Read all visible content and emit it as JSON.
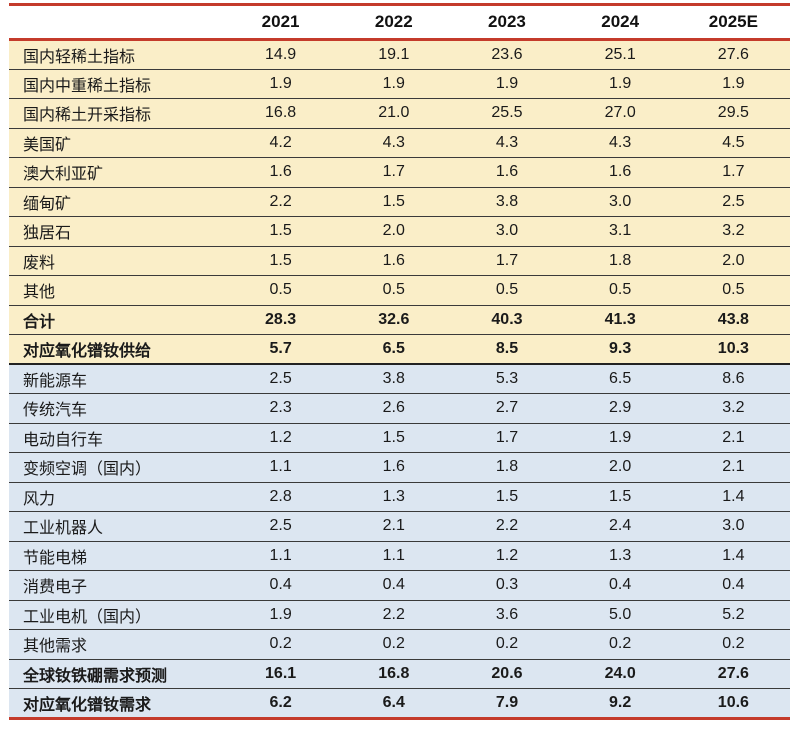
{
  "colors": {
    "supply_row_bg": "#FAEEC8",
    "demand_row_bg": "#DCE6F1",
    "accent_line": "#C43B2B",
    "separator_line": "#3A3A3A",
    "text": "#1A1A1A"
  },
  "table": {
    "empty_corner": "",
    "years": [
      "2021",
      "2022",
      "2023",
      "2024",
      "2025E"
    ],
    "rows": [
      {
        "label": "国内轻稀土指标",
        "values": [
          "14.9",
          "19.1",
          "23.6",
          "25.1",
          "27.6"
        ],
        "section": "supply",
        "bold": false
      },
      {
        "label": "国内中重稀土指标",
        "values": [
          "1.9",
          "1.9",
          "1.9",
          "1.9",
          "1.9"
        ],
        "section": "supply",
        "bold": false
      },
      {
        "label": "国内稀土开采指标",
        "values": [
          "16.8",
          "21.0",
          "25.5",
          "27.0",
          "29.5"
        ],
        "section": "supply",
        "bold": false
      },
      {
        "label": "美国矿",
        "values": [
          "4.2",
          "4.3",
          "4.3",
          "4.3",
          "4.5"
        ],
        "section": "supply",
        "bold": false
      },
      {
        "label": "澳大利亚矿",
        "values": [
          "1.6",
          "1.7",
          "1.6",
          "1.6",
          "1.7"
        ],
        "section": "supply",
        "bold": false
      },
      {
        "label": "缅甸矿",
        "values": [
          "2.2",
          "1.5",
          "3.8",
          "3.0",
          "2.5"
        ],
        "section": "supply",
        "bold": false
      },
      {
        "label": "独居石",
        "values": [
          "1.5",
          "2.0",
          "3.0",
          "3.1",
          "3.2"
        ],
        "section": "supply",
        "bold": false
      },
      {
        "label": "废料",
        "values": [
          "1.5",
          "1.6",
          "1.7",
          "1.8",
          "2.0"
        ],
        "section": "supply",
        "bold": false
      },
      {
        "label": "其他",
        "values": [
          "0.5",
          "0.5",
          "0.5",
          "0.5",
          "0.5"
        ],
        "section": "supply",
        "bold": false
      },
      {
        "label": "合计",
        "values": [
          "28.3",
          "32.6",
          "40.3",
          "41.3",
          "43.8"
        ],
        "section": "supply",
        "bold": true
      },
      {
        "label": "对应氧化镨钕供给",
        "values": [
          "5.7",
          "6.5",
          "8.5",
          "9.3",
          "10.3"
        ],
        "section": "supply",
        "bold": true
      },
      {
        "label": "新能源车",
        "values": [
          "2.5",
          "3.8",
          "5.3",
          "6.5",
          "8.6"
        ],
        "section": "demand",
        "bold": false
      },
      {
        "label": "传统汽车",
        "values": [
          "2.3",
          "2.6",
          "2.7",
          "2.9",
          "3.2"
        ],
        "section": "demand",
        "bold": false
      },
      {
        "label": "电动自行车",
        "values": [
          "1.2",
          "1.5",
          "1.7",
          "1.9",
          "2.1"
        ],
        "section": "demand",
        "bold": false
      },
      {
        "label": "变频空调（国内）",
        "values": [
          "1.1",
          "1.6",
          "1.8",
          "2.0",
          "2.1"
        ],
        "section": "demand",
        "bold": false
      },
      {
        "label": "风力",
        "values": [
          "2.8",
          "1.3",
          "1.5",
          "1.5",
          "1.4"
        ],
        "section": "demand",
        "bold": false
      },
      {
        "label": "工业机器人",
        "values": [
          "2.5",
          "2.1",
          "2.2",
          "2.4",
          "3.0"
        ],
        "section": "demand",
        "bold": false
      },
      {
        "label": "节能电梯",
        "values": [
          "1.1",
          "1.1",
          "1.2",
          "1.3",
          "1.4"
        ],
        "section": "demand",
        "bold": false
      },
      {
        "label": "消费电子",
        "values": [
          "0.4",
          "0.4",
          "0.3",
          "0.4",
          "0.4"
        ],
        "section": "demand",
        "bold": false
      },
      {
        "label": "工业电机（国内）",
        "values": [
          "1.9",
          "2.2",
          "3.6",
          "5.0",
          "5.2"
        ],
        "section": "demand",
        "bold": false
      },
      {
        "label": "其他需求",
        "values": [
          "0.2",
          "0.2",
          "0.2",
          "0.2",
          "0.2"
        ],
        "section": "demand",
        "bold": false
      },
      {
        "label": "全球钕铁硼需求预测",
        "values": [
          "16.1",
          "16.8",
          "20.6",
          "24.0",
          "27.6"
        ],
        "section": "demand",
        "bold": true
      },
      {
        "label": "对应氧化镨钕需求",
        "values": [
          "6.2",
          "6.4",
          "7.9",
          "9.2",
          "10.6"
        ],
        "section": "demand",
        "bold": true
      }
    ]
  }
}
